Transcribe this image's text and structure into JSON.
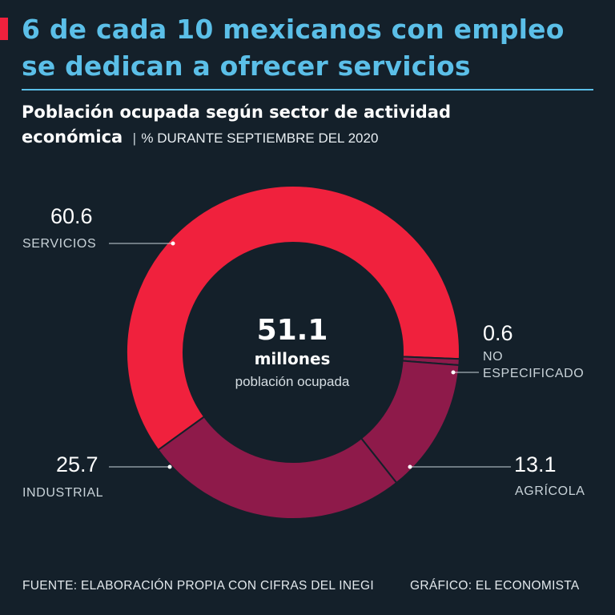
{
  "headline": {
    "line1": "6 de cada 10 mexicanos con empleo",
    "line2": "se dedican a ofrecer servicios"
  },
  "subtitle": {
    "bold_line1": "Población ocupada según sector de actividad",
    "bold_line2": "económica",
    "separator": "|",
    "detail": "% DURANTE SEPTIEMBRE DEL 2020"
  },
  "chart_data": {
    "type": "pie",
    "variant": "donut",
    "title": "Población ocupada según sector de actividad económica",
    "unit": "%",
    "series": [
      {
        "name": "SERVICIOS",
        "value": 60.6,
        "value_label": "60.6",
        "color": "#f0213d"
      },
      {
        "name": "NO ESPECIFICADO",
        "value": 0.6,
        "value_label": "0.6",
        "color": "#8e1a4a"
      },
      {
        "name": "AGRÍCOLA",
        "value": 13.1,
        "value_label": "13.1",
        "color": "#8e1a4a"
      },
      {
        "name": "INDUSTRIAL",
        "value": 25.7,
        "value_label": "25.7",
        "color": "#8e1a4a"
      }
    ],
    "center": {
      "value": "51.1",
      "unit": "millones",
      "description": "población ocupada"
    }
  },
  "labels": {
    "servicios": {
      "value": "60.6",
      "name": "SERVICIOS"
    },
    "no_especificado": {
      "value": "0.6",
      "name_line1": "NO",
      "name_line2": "ESPECIFICADO"
    },
    "agricola": {
      "value": "13.1",
      "name": "AGRÍCOLA"
    },
    "industrial": {
      "value": "25.7",
      "name": "INDUSTRIAL"
    }
  },
  "footer": {
    "source": "FUENTE: ELABORACIÓN PROPIA CON CIFRAS DEL INEGI",
    "credit": "GRÁFICO: EL ECONOMISTA"
  },
  "colors": {
    "background": "#14202a",
    "headline": "#5bbfe8",
    "accent": "#f0213d",
    "secondary_segment": "#8e1a4a"
  }
}
